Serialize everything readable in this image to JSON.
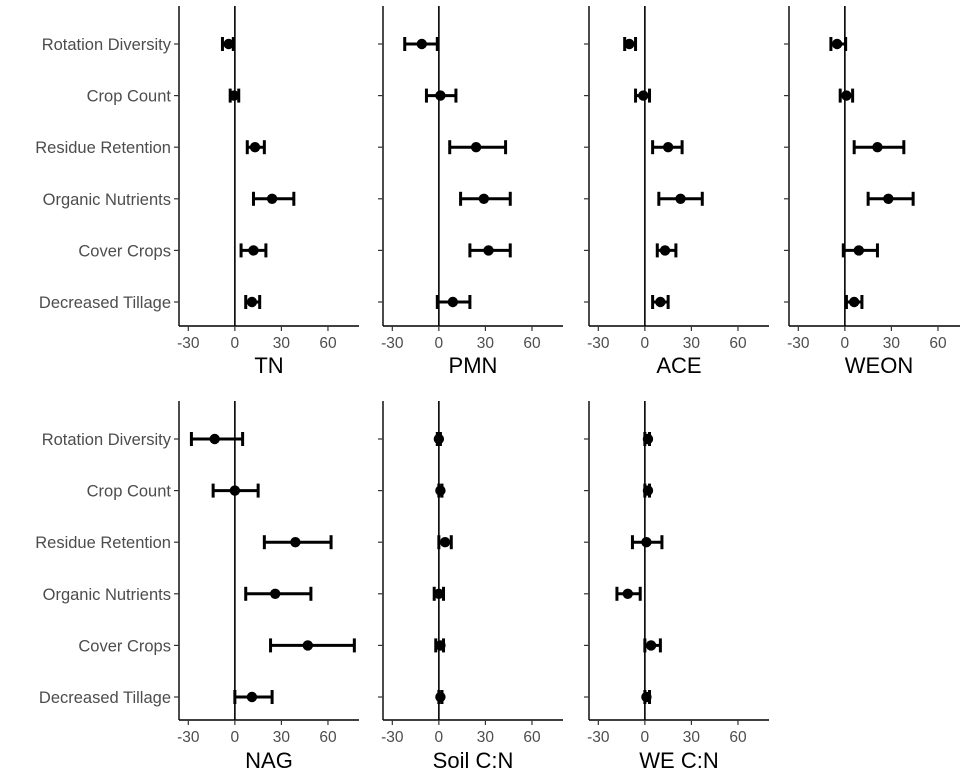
{
  "chart_data": {
    "type": "forest",
    "xlim": [
      -36,
      80
    ],
    "xticks": [
      -30,
      0,
      30,
      60
    ],
    "reference_line_x": 0,
    "grid": false,
    "categories": [
      "Rotation Diversity",
      "Crop Count",
      "Residue Retention",
      "Organic Nutrients",
      "Cover Crops",
      "Decreased Tillage"
    ],
    "panels": [
      {
        "title": "TN",
        "series": [
          {
            "category": "Rotation Diversity",
            "estimate": -4,
            "lower": -8,
            "upper": -1
          },
          {
            "category": "Crop Count",
            "estimate": -0.5,
            "lower": -3,
            "upper": 2.5
          },
          {
            "category": "Residue Retention",
            "estimate": 13,
            "lower": 8,
            "upper": 19
          },
          {
            "category": "Organic Nutrients",
            "estimate": 24,
            "lower": 12,
            "upper": 38
          },
          {
            "category": "Cover Crops",
            "estimate": 12,
            "lower": 4,
            "upper": 20
          },
          {
            "category": "Decreased Tillage",
            "estimate": 11,
            "lower": 7,
            "upper": 16
          }
        ]
      },
      {
        "title": "PMN",
        "series": [
          {
            "category": "Rotation Diversity",
            "estimate": -11,
            "lower": -22,
            "upper": -1
          },
          {
            "category": "Crop Count",
            "estimate": 1,
            "lower": -8,
            "upper": 11
          },
          {
            "category": "Residue Retention",
            "estimate": 24,
            "lower": 7,
            "upper": 43
          },
          {
            "category": "Organic Nutrients",
            "estimate": 29,
            "lower": 14,
            "upper": 46
          },
          {
            "category": "Cover Crops",
            "estimate": 32,
            "lower": 20,
            "upper": 46
          },
          {
            "category": "Decreased Tillage",
            "estimate": 9,
            "lower": -1,
            "upper": 20
          }
        ]
      },
      {
        "title": "ACE",
        "series": [
          {
            "category": "Rotation Diversity",
            "estimate": -10,
            "lower": -13,
            "upper": -6
          },
          {
            "category": "Crop Count",
            "estimate": -1,
            "lower": -6,
            "upper": 3
          },
          {
            "category": "Residue Retention",
            "estimate": 15,
            "lower": 5,
            "upper": 24
          },
          {
            "category": "Organic Nutrients",
            "estimate": 23,
            "lower": 9,
            "upper": 37
          },
          {
            "category": "Cover Crops",
            "estimate": 13,
            "lower": 8,
            "upper": 20
          },
          {
            "category": "Decreased Tillage",
            "estimate": 10,
            "lower": 5,
            "upper": 15
          }
        ]
      },
      {
        "title": "WEON",
        "series": [
          {
            "category": "Rotation Diversity",
            "estimate": -5,
            "lower": -9,
            "upper": 0.5
          },
          {
            "category": "Crop Count",
            "estimate": 1,
            "lower": -3,
            "upper": 5
          },
          {
            "category": "Residue Retention",
            "estimate": 21,
            "lower": 6,
            "upper": 38
          },
          {
            "category": "Organic Nutrients",
            "estimate": 28,
            "lower": 15,
            "upper": 44
          },
          {
            "category": "Cover Crops",
            "estimate": 9,
            "lower": -1,
            "upper": 21
          },
          {
            "category": "Decreased Tillage",
            "estimate": 6,
            "lower": 1,
            "upper": 11
          }
        ]
      },
      {
        "title": "NAG",
        "series": [
          {
            "category": "Rotation Diversity",
            "estimate": -13,
            "lower": -28,
            "upper": 5
          },
          {
            "category": "Crop Count",
            "estimate": 0,
            "lower": -14,
            "upper": 15
          },
          {
            "category": "Residue Retention",
            "estimate": 39,
            "lower": 19,
            "upper": 62
          },
          {
            "category": "Organic Nutrients",
            "estimate": 26,
            "lower": 7,
            "upper": 49
          },
          {
            "category": "Cover Crops",
            "estimate": 47,
            "lower": 23,
            "upper": 77
          },
          {
            "category": "Decreased Tillage",
            "estimate": 11,
            "lower": 0,
            "upper": 24
          }
        ]
      },
      {
        "title": "Soil C:N",
        "series": [
          {
            "category": "Rotation Diversity",
            "estimate": 0,
            "lower": -1,
            "upper": 1
          },
          {
            "category": "Crop Count",
            "estimate": 1,
            "lower": 0,
            "upper": 2
          },
          {
            "category": "Residue Retention",
            "estimate": 4,
            "lower": 0,
            "upper": 8
          },
          {
            "category": "Organic Nutrients",
            "estimate": 0,
            "lower": -3,
            "upper": 3
          },
          {
            "category": "Cover Crops",
            "estimate": 1,
            "lower": -2,
            "upper": 3
          },
          {
            "category": "Decreased Tillage",
            "estimate": 1,
            "lower": 0,
            "upper": 2
          }
        ]
      },
      {
        "title": "WE C:N",
        "series": [
          {
            "category": "Rotation Diversity",
            "estimate": 2,
            "lower": 0,
            "upper": 3
          },
          {
            "category": "Crop Count",
            "estimate": 2,
            "lower": 0,
            "upper": 3
          },
          {
            "category": "Residue Retention",
            "estimate": 1,
            "lower": -8,
            "upper": 11
          },
          {
            "category": "Organic Nutrients",
            "estimate": -11,
            "lower": -18,
            "upper": -3
          },
          {
            "category": "Cover Crops",
            "estimate": 4,
            "lower": 0,
            "upper": 10
          },
          {
            "category": "Decreased Tillage",
            "estimate": 1,
            "lower": 0,
            "upper": 3
          }
        ]
      }
    ]
  }
}
